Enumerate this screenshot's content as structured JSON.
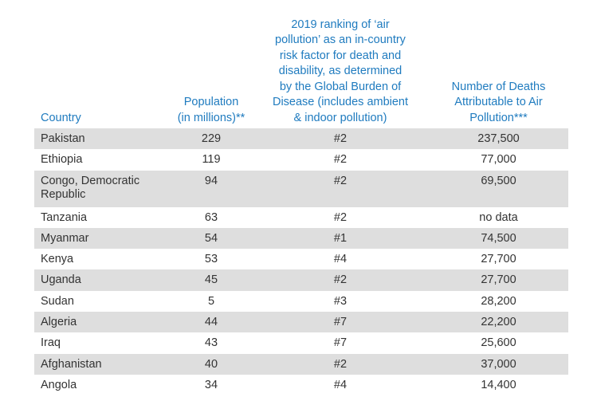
{
  "headers": {
    "country": "Country",
    "population": "Population\n(in millions)**",
    "ranking": "2019 ranking of ‘air\npollution’ as an in-country\nrisk factor for death and\ndisability, as determined\nby the Global Burden of\nDisease (includes ambient\n& indoor pollution)",
    "deaths": "Number of Deaths\nAttributable to Air\nPollution***"
  },
  "rows": [
    {
      "country": "Pakistan",
      "population": "229",
      "ranking": "#2",
      "deaths": "237,500"
    },
    {
      "country": "Ethiopia",
      "population": "119",
      "ranking": "#2",
      "deaths": "77,000"
    },
    {
      "country": "Congo, Democratic\nRepublic",
      "population": "94",
      "ranking": "#2",
      "deaths": "69,500"
    },
    {
      "country": "Tanzania",
      "population": "63",
      "ranking": "#2",
      "deaths": "no data"
    },
    {
      "country": "Myanmar",
      "population": "54",
      "ranking": "#1",
      "deaths": "74,500"
    },
    {
      "country": "Kenya",
      "population": "53",
      "ranking": "#4",
      "deaths": "27,700"
    },
    {
      "country": "Uganda",
      "population": "45",
      "ranking": "#2",
      "deaths": "27,700"
    },
    {
      "country": "Sudan",
      "population": "5",
      "ranking": "#3",
      "deaths": "28,200"
    },
    {
      "country": "Algeria",
      "population": "44",
      "ranking": "#7",
      "deaths": "22,200"
    },
    {
      "country": "Iraq",
      "population": "43",
      "ranking": "#7",
      "deaths": "25,600"
    },
    {
      "country": "Afghanistan",
      "population": "40",
      "ranking": "#2",
      "deaths": "37,000"
    },
    {
      "country": "Angola",
      "population": "34",
      "ranking": "#4",
      "deaths": "14,400"
    }
  ]
}
